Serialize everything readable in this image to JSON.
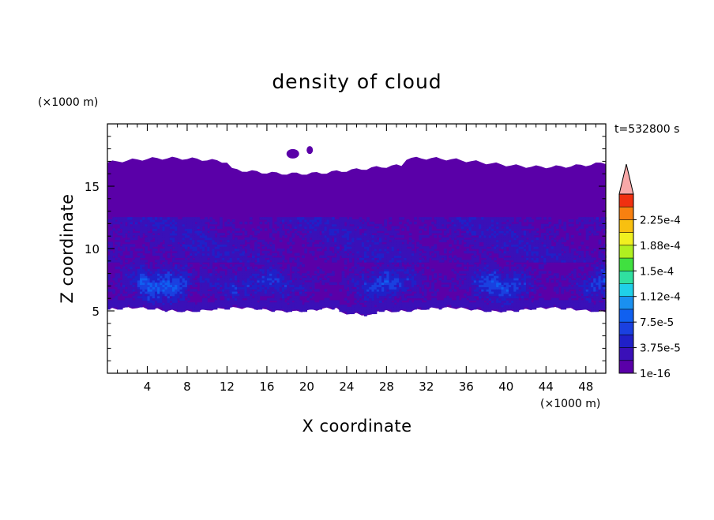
{
  "chart_data": {
    "type": "heatmap",
    "title": "density of cloud",
    "xlabel": "X coordinate",
    "ylabel": "Z coordinate",
    "x_unit": "(×1000 m)",
    "y_unit": "(×1000 m)",
    "time_label": "t=532800 s",
    "xlim": [
      0,
      50
    ],
    "ylim": [
      0,
      20
    ],
    "x_ticks": [
      4,
      8,
      12,
      16,
      20,
      24,
      28,
      32,
      36,
      40,
      44,
      48
    ],
    "y_ticks": [
      5,
      10,
      15
    ],
    "colorbar": {
      "labels": [
        "2.25e-4",
        "1.88e-4",
        "1.5e-4",
        "1.12e-4",
        "7.5e-5",
        "3.75e-5",
        "1e-16"
      ],
      "levels": [
        "1e-16",
        "1.88e-5",
        "3.75e-5",
        "5.63e-5",
        "7.5e-5",
        "9.38e-5",
        "1.12e-4",
        "1.31e-4",
        "1.5e-4",
        "1.69e-4",
        "1.88e-4",
        "2.06e-4",
        "2.25e-4",
        "2.44e-4"
      ],
      "colors": [
        "#5a00a8",
        "#3a10b8",
        "#2020c8",
        "#1a40e0",
        "#1060f0",
        "#1a90f0",
        "#20d0e8",
        "#30e0a0",
        "#40e040",
        "#b0f020",
        "#f0f020",
        "#f8c010",
        "#f88010",
        "#f03010",
        "#f8a8a8"
      ],
      "extend": "max"
    }
  }
}
